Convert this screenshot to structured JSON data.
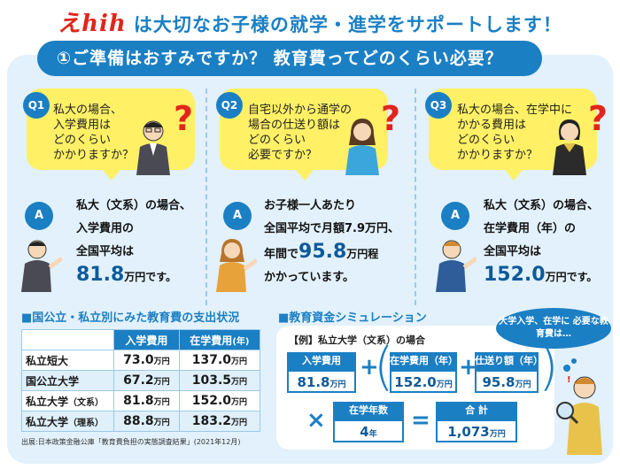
{
  "header": {
    "logo": "えhih",
    "headline": "は大切なお子様の就学・進学をサポートします！"
  },
  "banner": "①ご準備はおすみですか？ 教育費ってどのくらい必要？",
  "questions": [
    {
      "badge": "Q1",
      "lines": [
        "私大の場合、",
        "入学費用は",
        "どのくらい",
        "かかりますか？"
      ]
    },
    {
      "badge": "Q2",
      "lines": [
        "自宅以外から通学の",
        "場合の仕送り額は",
        "どのくらい",
        "必要ですか？"
      ]
    },
    {
      "badge": "Q3",
      "lines": [
        "私大の場合、在学中に",
        "かかる費用は",
        "どのくらい",
        "かかりますか？"
      ]
    }
  ],
  "question_mark": "?",
  "answers": [
    {
      "badge": "A",
      "l1": "私大（文系）の場合、",
      "l2": "入学費用の",
      "l3": "全国平均は",
      "big": "81.8",
      "unit": "万円です。"
    },
    {
      "badge": "A",
      "l1": "お子様一人あたり",
      "l2": "全国平均で月額7.9万円、",
      "pre": "年間で",
      "big": "95.8",
      "unit": "万円程",
      "l4": "かかっています。"
    },
    {
      "badge": "A",
      "l1": "私大（文系）の場合、",
      "l2": "在学費用（年）の",
      "l3": "全国平均は",
      "big": "152.0",
      "unit": "万円です。"
    }
  ],
  "table": {
    "heading": "■国公立・私立別にみた教育費の支出状況",
    "col1": "入学費用",
    "col2": "在学費用",
    "col2_suffix": "(年)",
    "unit": "万円",
    "rows": [
      {
        "label": "私立短大",
        "suffix": "",
        "a": "73.0",
        "b": "137.0"
      },
      {
        "label": "国公立大学",
        "suffix": "",
        "a": "67.2",
        "b": "103.5"
      },
      {
        "label": "私立大学",
        "suffix": "（文系）",
        "a": "81.8",
        "b": "152.0"
      },
      {
        "label": "私立大学",
        "suffix": "（理系）",
        "a": "88.8",
        "b": "183.2"
      }
    ],
    "source": "出展:日本政策金融公庫「教育費負担の実態調査結果」(2021年12月)"
  },
  "simulation": {
    "heading": "■教育資金シミュレーション",
    "example": "【例】私立大学（文系）の場合",
    "entry_label": "入学費用",
    "entry_value": "81.8",
    "tuition_label": "在学費用（年）",
    "tuition_value": "152.0",
    "allowance_label": "仕送り額（年）",
    "allowance_value": "95.8",
    "yen_unit": "万円",
    "years_label": "在学年数",
    "years_value": "4",
    "years_unit": "年",
    "total_label": "合 計",
    "total_value": "1,073",
    "plus": "+",
    "times": "×",
    "equals": "=",
    "thought": "大学入学、在学に 必要な教育費は…"
  },
  "colors": {
    "brand_blue": "#1b7fc4",
    "accent_red": "#e1251b",
    "bubble_yellow": "#fff066",
    "panel_bg": "#e2f1fb"
  }
}
